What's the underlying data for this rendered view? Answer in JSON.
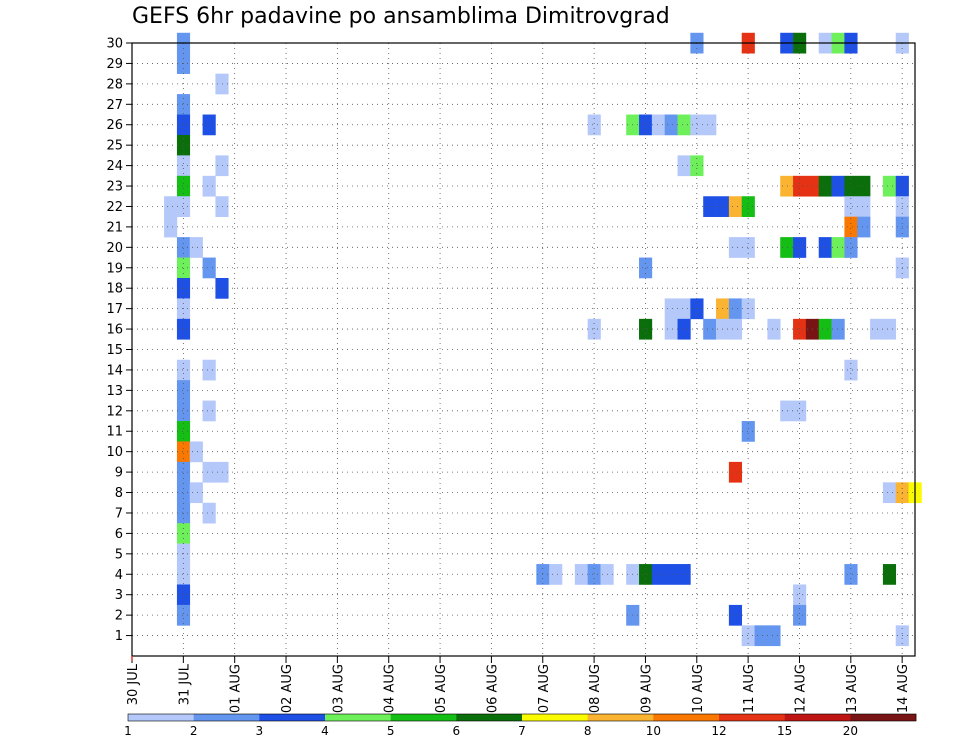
{
  "chart_data": {
    "type": "heatmap",
    "title": "GEFS 6hr padavine po ansamblima Dimitrovgrad",
    "xlabel": "",
    "ylabel": "",
    "x_tick_labels": [
      "30 JUL",
      "31 JUL",
      "01 AUG",
      "02 AUG",
      "03 AUG",
      "04 AUG",
      "05 AUG",
      "06 AUG",
      "07 AUG",
      "08 AUG",
      "09 AUG",
      "10 AUG",
      "11 AUG",
      "12 AUG",
      "13 AUG",
      "14 AUG"
    ],
    "y_tick_labels": [
      "1",
      "2",
      "3",
      "4",
      "5",
      "6",
      "7",
      "8",
      "9",
      "10",
      "11",
      "12",
      "13",
      "14",
      "15",
      "16",
      "17",
      "18",
      "19",
      "20",
      "21",
      "22",
      "23",
      "24",
      "25",
      "26",
      "27",
      "28",
      "29",
      "30"
    ],
    "xlim_steps": [
      0,
      61
    ],
    "ylim": [
      0,
      30
    ],
    "grid": true,
    "colorbar": {
      "levels": [
        "1",
        "2",
        "3",
        "4",
        "5",
        "6",
        "7",
        "8",
        "10",
        "12",
        "15",
        "20"
      ],
      "colors": [
        "#b4c8fa",
        "#6496f0",
        "#1e50e6",
        "#6ef05a",
        "#14be14",
        "#0a6e0a",
        "#fafa00",
        "#fab432",
        "#fa7800",
        "#e63214",
        "#be1414",
        "#781414"
      ],
      "position": "bottom"
    },
    "units_note": "x = 6-hour step index from 30 JUL 00Z, y = ensemble member, c = colour class index",
    "cells": [
      [
        4,
        30,
        1
      ],
      [
        44,
        30,
        1
      ],
      [
        48,
        30,
        9
      ],
      [
        51,
        30,
        2
      ],
      [
        52,
        30,
        5
      ],
      [
        54,
        30,
        0
      ],
      [
        55,
        30,
        3
      ],
      [
        56,
        30,
        2
      ],
      [
        60,
        30,
        0
      ],
      [
        4,
        29,
        1
      ],
      [
        7,
        28,
        0
      ],
      [
        4,
        27,
        1
      ],
      [
        4,
        26,
        2
      ],
      [
        6,
        26,
        2
      ],
      [
        36,
        26,
        0
      ],
      [
        39,
        26,
        3
      ],
      [
        40,
        26,
        2
      ],
      [
        41,
        26,
        0
      ],
      [
        42,
        26,
        1
      ],
      [
        43,
        26,
        3
      ],
      [
        44,
        26,
        0
      ],
      [
        45,
        26,
        0
      ],
      [
        4,
        25,
        5
      ],
      [
        4,
        24,
        0
      ],
      [
        7,
        24,
        0
      ],
      [
        43,
        24,
        0
      ],
      [
        44,
        24,
        3
      ],
      [
        4,
        23,
        4
      ],
      [
        6,
        23,
        0
      ],
      [
        51,
        23,
        7
      ],
      [
        52,
        23,
        9
      ],
      [
        53,
        23,
        9
      ],
      [
        54,
        23,
        5
      ],
      [
        55,
        23,
        2
      ],
      [
        56,
        23,
        5
      ],
      [
        57,
        23,
        5
      ],
      [
        59,
        23,
        3
      ],
      [
        60,
        23,
        2
      ],
      [
        3,
        22,
        0
      ],
      [
        4,
        22,
        0
      ],
      [
        7,
        22,
        0
      ],
      [
        45,
        22,
        2
      ],
      [
        46,
        22,
        2
      ],
      [
        47,
        22,
        7
      ],
      [
        48,
        22,
        4
      ],
      [
        56,
        22,
        0
      ],
      [
        57,
        22,
        0
      ],
      [
        60,
        22,
        0
      ],
      [
        3,
        21,
        0
      ],
      [
        56,
        21,
        8
      ],
      [
        57,
        21,
        1
      ],
      [
        60,
        21,
        1
      ],
      [
        4,
        20,
        1
      ],
      [
        5,
        20,
        0
      ],
      [
        47,
        20,
        0
      ],
      [
        48,
        20,
        0
      ],
      [
        51,
        20,
        4
      ],
      [
        52,
        20,
        2
      ],
      [
        54,
        20,
        2
      ],
      [
        55,
        20,
        3
      ],
      [
        56,
        20,
        1
      ],
      [
        4,
        19,
        3
      ],
      [
        6,
        19,
        1
      ],
      [
        40,
        19,
        1
      ],
      [
        60,
        19,
        0
      ],
      [
        4,
        18,
        2
      ],
      [
        7,
        18,
        2
      ],
      [
        4,
        17,
        0
      ],
      [
        42,
        17,
        0
      ],
      [
        43,
        17,
        0
      ],
      [
        44,
        17,
        2
      ],
      [
        46,
        17,
        7
      ],
      [
        47,
        17,
        1
      ],
      [
        48,
        17,
        0
      ],
      [
        4,
        16,
        2
      ],
      [
        36,
        16,
        0
      ],
      [
        40,
        16,
        5
      ],
      [
        42,
        16,
        0
      ],
      [
        43,
        16,
        2
      ],
      [
        45,
        16,
        1
      ],
      [
        46,
        16,
        0
      ],
      [
        47,
        16,
        0
      ],
      [
        50,
        16,
        0
      ],
      [
        52,
        16,
        9
      ],
      [
        53,
        16,
        11
      ],
      [
        54,
        16,
        4
      ],
      [
        55,
        16,
        1
      ],
      [
        58,
        16,
        0
      ],
      [
        59,
        16,
        0
      ],
      [
        4,
        14,
        0
      ],
      [
        6,
        14,
        0
      ],
      [
        56,
        14,
        0
      ],
      [
        4,
        13,
        1
      ],
      [
        4,
        12,
        1
      ],
      [
        6,
        12,
        0
      ],
      [
        51,
        12,
        0
      ],
      [
        52,
        12,
        0
      ],
      [
        4,
        11,
        4
      ],
      [
        48,
        11,
        1
      ],
      [
        4,
        10,
        8
      ],
      [
        5,
        10,
        0
      ],
      [
        4,
        9,
        1
      ],
      [
        6,
        9,
        0
      ],
      [
        7,
        9,
        0
      ],
      [
        47,
        9,
        9
      ],
      [
        4,
        8,
        1
      ],
      [
        5,
        8,
        0
      ],
      [
        59,
        8,
        0
      ],
      [
        60,
        8,
        7
      ],
      [
        61,
        8,
        6
      ],
      [
        4,
        7,
        1
      ],
      [
        6,
        7,
        0
      ],
      [
        4,
        6,
        3
      ],
      [
        4,
        5,
        0
      ],
      [
        4,
        4,
        0
      ],
      [
        32,
        4,
        1
      ],
      [
        33,
        4,
        0
      ],
      [
        35,
        4,
        0
      ],
      [
        36,
        4,
        1
      ],
      [
        37,
        4,
        0
      ],
      [
        39,
        4,
        0
      ],
      [
        40,
        4,
        5
      ],
      [
        41,
        4,
        2
      ],
      [
        42,
        4,
        2
      ],
      [
        43,
        4,
        2
      ],
      [
        56,
        4,
        1
      ],
      [
        59,
        4,
        5
      ],
      [
        4,
        3,
        2
      ],
      [
        52,
        3,
        0
      ],
      [
        4,
        2,
        1
      ],
      [
        39,
        2,
        1
      ],
      [
        47,
        2,
        2
      ],
      [
        52,
        2,
        1
      ],
      [
        48,
        1,
        0
      ],
      [
        49,
        1,
        1
      ],
      [
        50,
        1,
        1
      ],
      [
        60,
        1,
        0
      ]
    ]
  }
}
